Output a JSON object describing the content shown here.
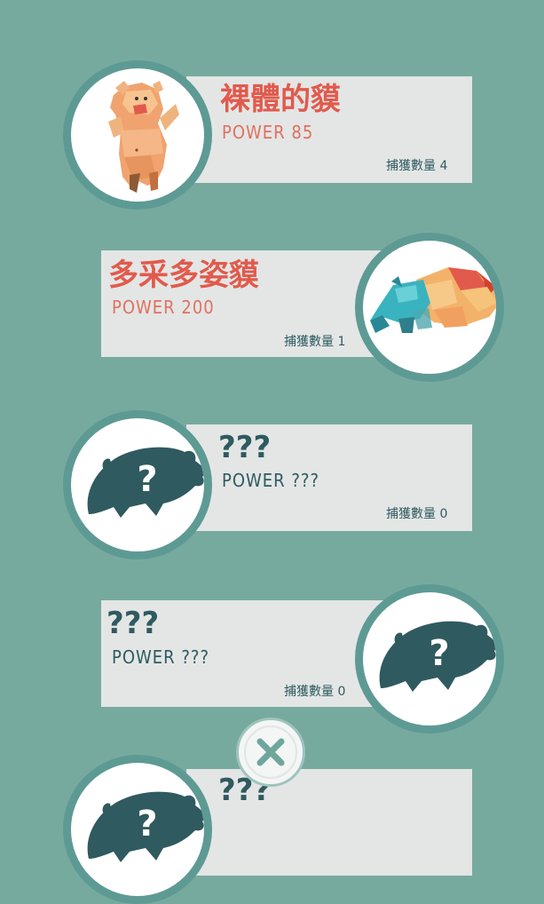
{
  "colors": {
    "background": "#77aa9e",
    "card": "#e3e6e5",
    "circle_border": "#5e9a94",
    "accent_red": "#e25a4c",
    "dark_teal": "#2f5a60"
  },
  "tapirs": [
    {
      "name": "裸體的貘",
      "power": "POWER 85",
      "count": "捕獲數量 4",
      "icon": "naked-tapir-illustration"
    },
    {
      "name": "多采多姿貘",
      "power": "POWER 200",
      "count": "捕獲數量 1",
      "icon": "colorful-tapir-illustration"
    },
    {
      "name": "???",
      "power": "POWER ???",
      "count": "捕獲數量 0",
      "icon": "unknown-tapir-silhouette"
    },
    {
      "name": "???",
      "power": "POWER ???",
      "count": "捕獲數量 0",
      "icon": "unknown-tapir-silhouette"
    },
    {
      "name": "???",
      "power": "",
      "count": "",
      "icon": "unknown-tapir-silhouette"
    }
  ],
  "close_button": {
    "icon": "close-icon"
  }
}
